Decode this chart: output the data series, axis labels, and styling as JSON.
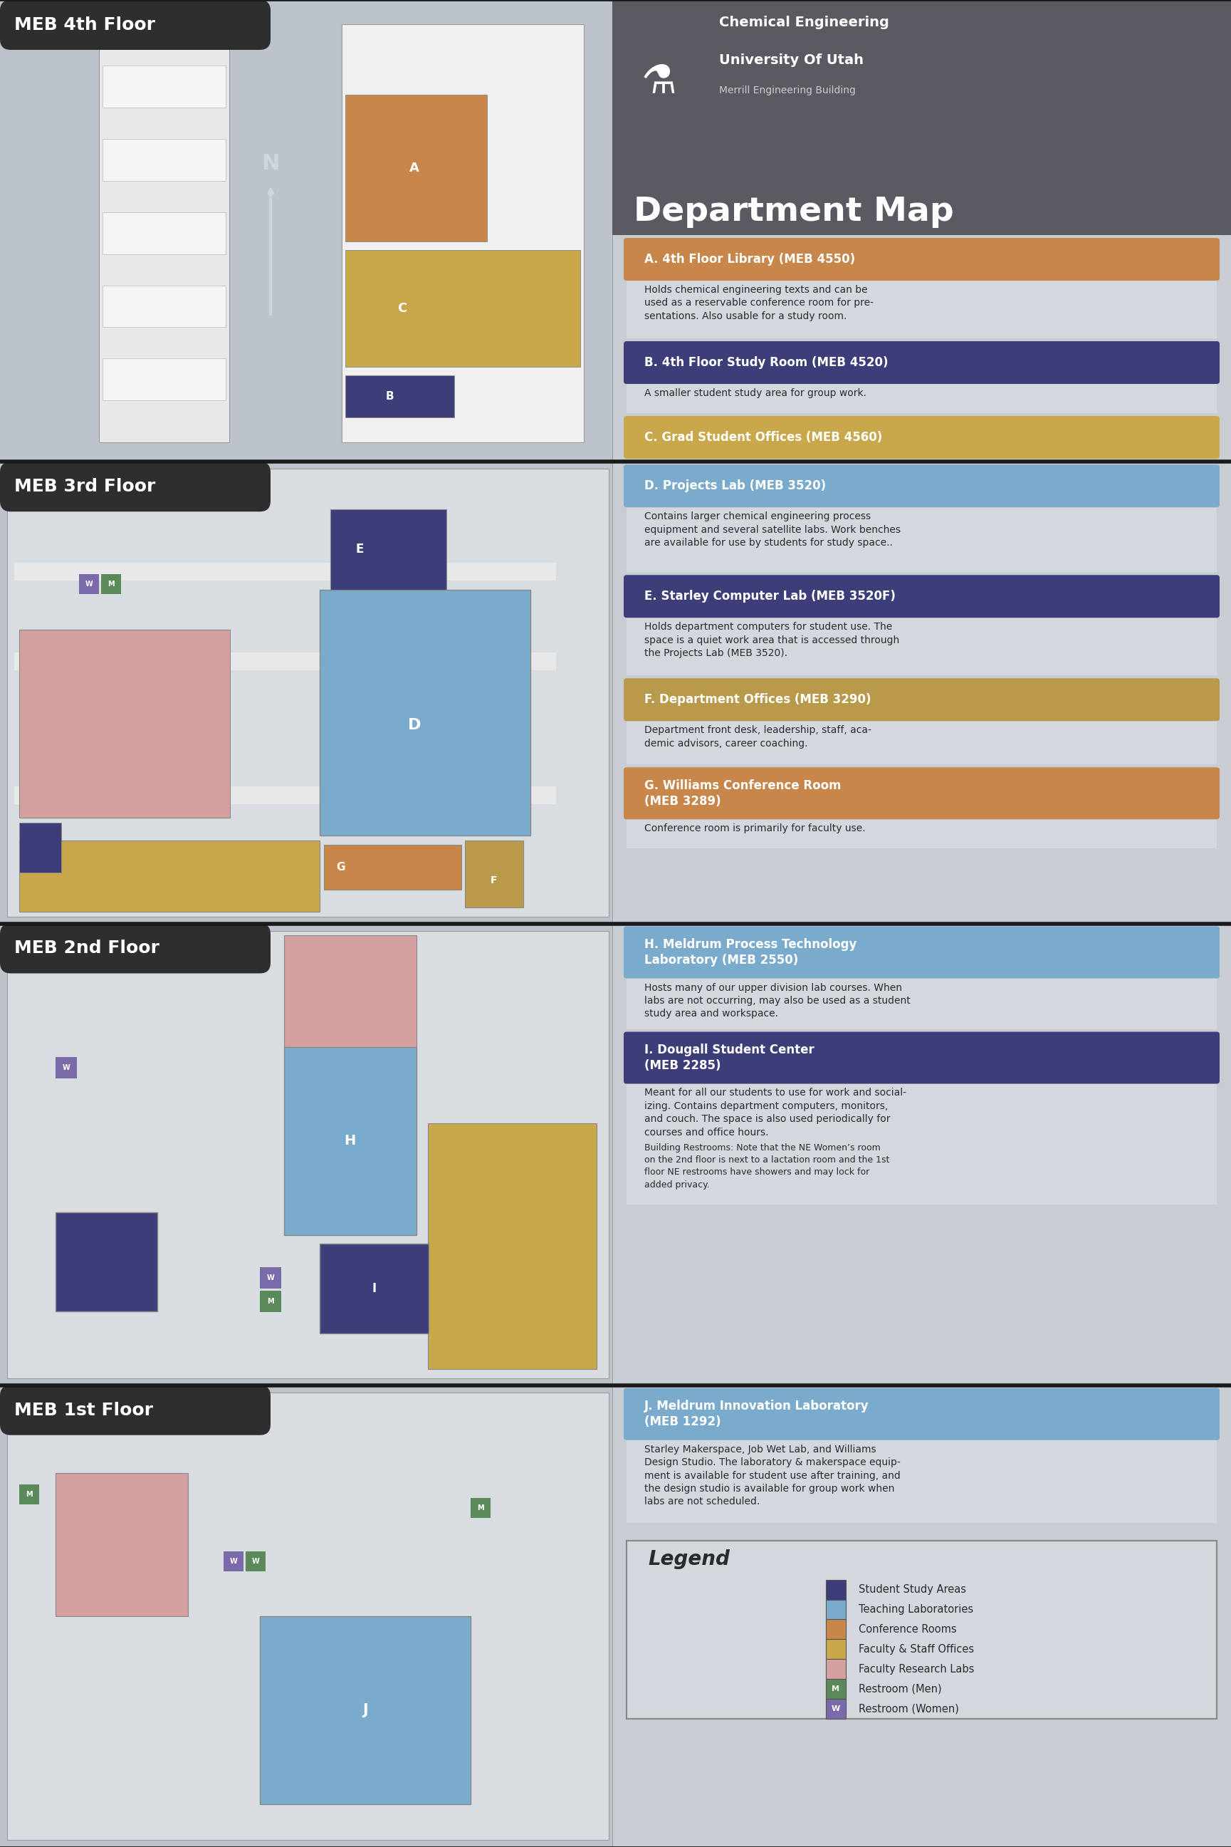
{
  "title": "Department Map",
  "subtitle1": "Chemical Engineering",
  "subtitle2": "University Of Utah",
  "subtitle3": "Merrill Engineering Building",
  "bg_color": "#b5bdc5",
  "header_bg": "#5a5a62",
  "right_panel_bg": "#c8cdd4",
  "desc_bg": "#d2d8de",
  "floor_label_bg": "#2e2e2e",
  "floor_label_color": "#ffffff",
  "divider_color": "#1a1a1a",
  "map_bg": "#bcc3cb",
  "rooms": [
    {
      "letter": "A",
      "title": "A. 4th Floor Library (MEB 4550)",
      "desc": "Holds chemical engineering texts and can be\nused as a reservable conference room for pre-\nsentations. Also usable for a study room.",
      "color": "#c8864a",
      "has_desc": true
    },
    {
      "letter": "B",
      "title": "B. 4th Floor Study Room (MEB 4520)",
      "desc": "A smaller student study area for group work.",
      "color": "#3d3d7a",
      "has_desc": true
    },
    {
      "letter": "C",
      "title": "C. Grad Student Offices (MEB 4560)",
      "desc": "",
      "color": "#c8a84a",
      "has_desc": false
    },
    {
      "letter": "D",
      "title": "D. Projects Lab (MEB 3520)",
      "desc": "Contains larger chemical engineering process\nequipment and several satellite labs. Work benches\nare available for use by students for study space..",
      "color": "#7aabcc",
      "has_desc": true
    },
    {
      "letter": "E",
      "title": "E. Starley Computer Lab (MEB 3520F)",
      "desc": "Holds department computers for student use. The\nspace is a quiet work area that is accessed through\nthe Projects Lab (MEB 3520).",
      "color": "#3d3d7a",
      "has_desc": true
    },
    {
      "letter": "F",
      "title": "F. Department Offices (MEB 3290)",
      "desc": "Department front desk, leadership, staff, aca-\ndemic advisors, career coaching.",
      "color": "#b89a4a",
      "has_desc": true
    },
    {
      "letter": "G",
      "title": "G. Williams Conference Room\n(MEB 3289)",
      "desc": "Conference room is primarily for faculty use.",
      "color": "#c8864a",
      "has_desc": true
    },
    {
      "letter": "H",
      "title": "H. Meldrum Process Technology\nLaboratory (MEB 2550)",
      "desc": "Hosts many of our upper division lab courses. When\nlabs are not occurring, may also be used as a student\nstudy area and workspace.",
      "color": "#7aabcc",
      "has_desc": true
    },
    {
      "letter": "I",
      "title": "I. Dougall Student Center\n(MEB 2285)",
      "desc": "Meant for all our students to use for work and social-\nizing. Contains department computers, monitors,\nand couch. The space is also used periodically for\ncourses and office hours.",
      "desc2": "Building Restrooms: Note that the NE Women’s room\non the 2nd floor is next to a lactation room and the 1st\nfloor NE restrooms have showers and may lock for\nadded privacy.",
      "color": "#3d3d7a",
      "has_desc": true
    },
    {
      "letter": "J",
      "title": "J. Meldrum Innovation Laboratory\n(MEB 1292)",
      "desc": "Starley Makerspace, Job Wet Lab, and Williams\nDesign Studio. The laboratory & makerspace equip-\nment is available for student use after training, and\nthe design studio is available for group work when\nlabs are not scheduled.",
      "color": "#7aabcc",
      "has_desc": true
    }
  ],
  "legend_items": [
    {
      "label": "Student Study Areas",
      "color": "#3d3d7a"
    },
    {
      "label": "Teaching Laboratories",
      "color": "#7aabcc"
    },
    {
      "label": "Conference Rooms",
      "color": "#c8864a"
    },
    {
      "label": "Faculty & Staff Offices",
      "color": "#c8a84a"
    },
    {
      "label": "Faculty Research Labs",
      "color": "#d4a0a0"
    },
    {
      "label": "Restroom (Men)",
      "color": "#5a8a5a",
      "icon": "M"
    },
    {
      "label": "Restroom (Women)",
      "color": "#7a6aaa",
      "icon": "W"
    }
  ]
}
